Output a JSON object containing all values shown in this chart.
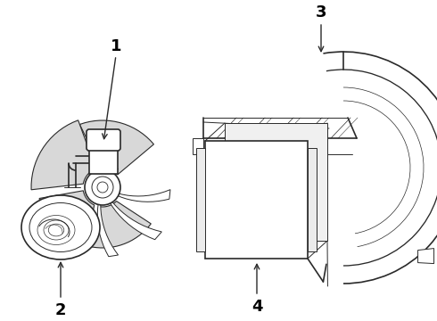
{
  "background_color": "#ffffff",
  "line_color": "#2a2a2a",
  "label_color": "#000000",
  "lw_main": 1.2,
  "lw_thin": 0.7,
  "lw_detail": 0.5
}
